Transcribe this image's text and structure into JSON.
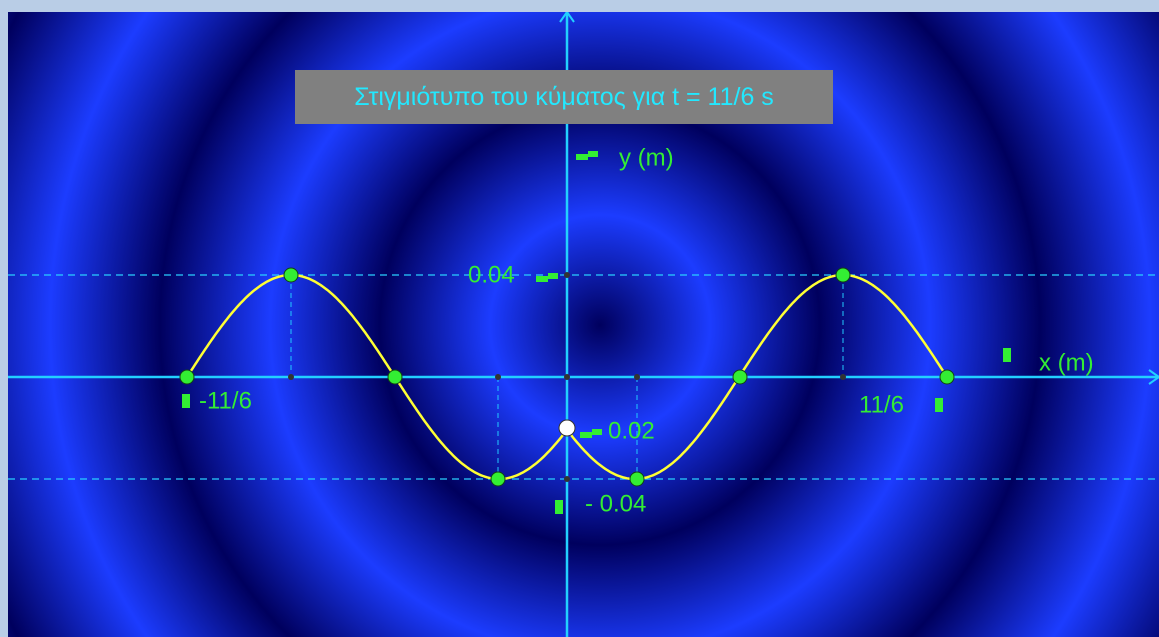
{
  "title": "Στιγμιότυπο του κύματος για t = 11/6 s",
  "y_axis_label": "y (m)",
  "x_axis_label": "x (m)",
  "labels": {
    "y_max": "0.04",
    "y_min": "- 0.04",
    "y_origin": "0.02",
    "x_left": "-11/6",
    "x_right": "11/6"
  }
}
